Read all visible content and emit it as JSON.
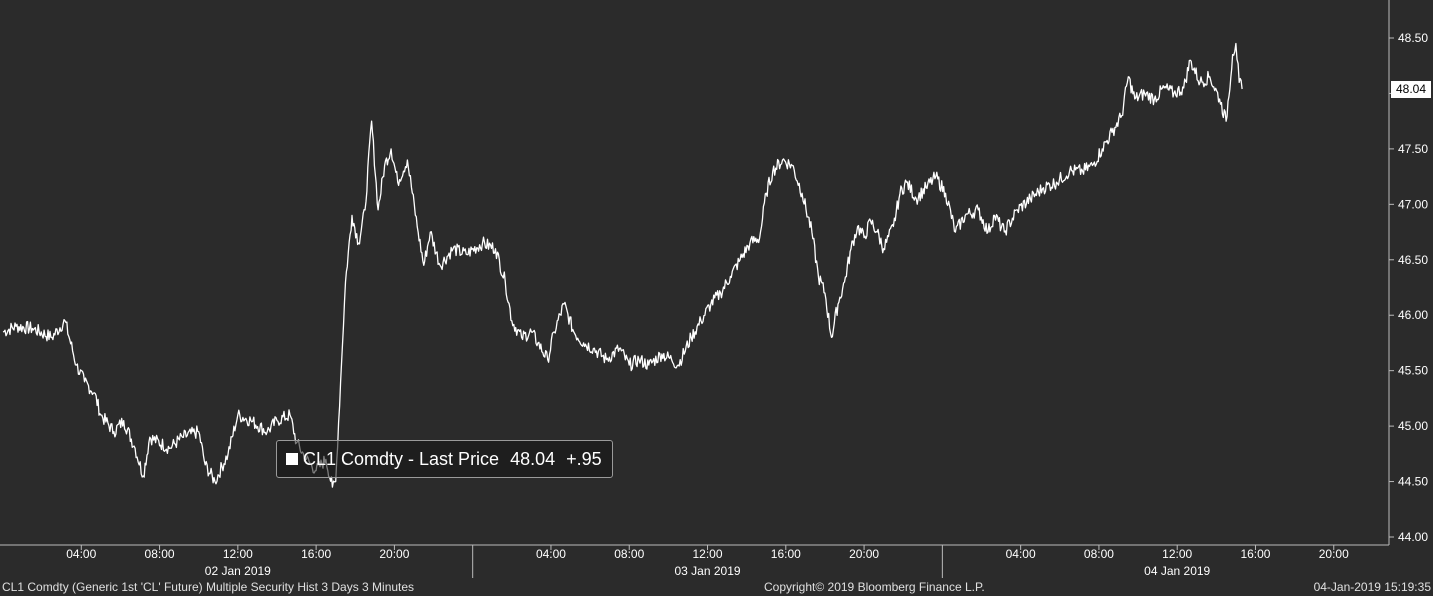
{
  "chart_data": {
    "type": "line",
    "title": "",
    "xlabel": "",
    "ylabel": "",
    "ylim": [
      44.0,
      48.75
    ],
    "y_ticks": [
      "44.00",
      "44.50",
      "45.00",
      "45.50",
      "46.00",
      "46.50",
      "47.00",
      "47.50",
      "48.00",
      "48.50"
    ],
    "x_time_ticks": [
      {
        "label": "04:00",
        "day": 0,
        "hour": 4
      },
      {
        "label": "08:00",
        "day": 0,
        "hour": 8
      },
      {
        "label": "12:00",
        "day": 0,
        "hour": 12
      },
      {
        "label": "16:00",
        "day": 0,
        "hour": 16
      },
      {
        "label": "20:00",
        "day": 0,
        "hour": 20
      },
      {
        "label": "04:00",
        "day": 1,
        "hour": 4
      },
      {
        "label": "08:00",
        "day": 1,
        "hour": 8
      },
      {
        "label": "12:00",
        "day": 1,
        "hour": 12
      },
      {
        "label": "16:00",
        "day": 1,
        "hour": 16
      },
      {
        "label": "20:00",
        "day": 1,
        "hour": 20
      },
      {
        "label": "04:00",
        "day": 2,
        "hour": 4
      },
      {
        "label": "08:00",
        "day": 2,
        "hour": 8
      },
      {
        "label": "12:00",
        "day": 2,
        "hour": 12
      },
      {
        "label": "16:00",
        "day": 2,
        "hour": 16
      },
      {
        "label": "20:00",
        "day": 2,
        "hour": 20
      }
    ],
    "x_day_labels": [
      "02 Jan 2019",
      "03 Jan 2019",
      "04 Jan 2019"
    ],
    "series": [
      {
        "name": "CL1 Comdty - Last Price",
        "color": "#ffffff",
        "points": [
          [
            "02 Jan 2019 00:00",
            45.85
          ],
          [
            "02 Jan 2019 00:40",
            45.9
          ],
          [
            "02 Jan 2019 01:30",
            45.88
          ],
          [
            "02 Jan 2019 02:30",
            45.8
          ],
          [
            "02 Jan 2019 03:10",
            45.95
          ],
          [
            "02 Jan 2019 03:45",
            45.55
          ],
          [
            "02 Jan 2019 04:10",
            45.4
          ],
          [
            "02 Jan 2019 04:40",
            45.3
          ],
          [
            "02 Jan 2019 05:00",
            45.1
          ],
          [
            "02 Jan 2019 05:40",
            44.95
          ],
          [
            "02 Jan 2019 06:10",
            45.05
          ],
          [
            "02 Jan 2019 06:45",
            44.8
          ],
          [
            "02 Jan 2019 07:10",
            44.55
          ],
          [
            "02 Jan 2019 07:30",
            44.9
          ],
          [
            "02 Jan 2019 08:30",
            44.8
          ],
          [
            "02 Jan 2019 09:10",
            44.9
          ],
          [
            "02 Jan 2019 10:00",
            44.95
          ],
          [
            "02 Jan 2019 10:20",
            44.65
          ],
          [
            "02 Jan 2019 10:50",
            44.5
          ],
          [
            "02 Jan 2019 11:30",
            44.75
          ],
          [
            "02 Jan 2019 12:00",
            45.1
          ],
          [
            "02 Jan 2019 12:40",
            45.05
          ],
          [
            "02 Jan 2019 13:30",
            44.95
          ],
          [
            "02 Jan 2019 14:00",
            45.05
          ],
          [
            "02 Jan 2019 14:40",
            45.1
          ],
          [
            "02 Jan 2019 15:00",
            44.85
          ],
          [
            "02 Jan 2019 15:30",
            44.7
          ],
          [
            "02 Jan 2019 16:00",
            44.6
          ],
          [
            "02 Jan 2019 16:30",
            44.7
          ],
          [
            "02 Jan 2019 16:50",
            44.45
          ],
          [
            "02 Jan 2019 17:00",
            44.5
          ],
          [
            "02 Jan 2019 17:15",
            45.4
          ],
          [
            "02 Jan 2019 17:30",
            46.3
          ],
          [
            "02 Jan 2019 17:50",
            46.9
          ],
          [
            "02 Jan 2019 18:10",
            46.65
          ],
          [
            "02 Jan 2019 18:30",
            46.95
          ],
          [
            "02 Jan 2019 18:50",
            47.75
          ],
          [
            "02 Jan 2019 19:10",
            46.95
          ],
          [
            "02 Jan 2019 19:30",
            47.35
          ],
          [
            "02 Jan 2019 19:50",
            47.5
          ],
          [
            "02 Jan 2019 20:10",
            47.2
          ],
          [
            "02 Jan 2019 20:40",
            47.4
          ],
          [
            "02 Jan 2019 21:10",
            46.8
          ],
          [
            "02 Jan 2019 21:30",
            46.45
          ],
          [
            "02 Jan 2019 21:50",
            46.75
          ],
          [
            "02 Jan 2019 22:20",
            46.45
          ],
          [
            "02 Jan 2019 23:00",
            46.6
          ],
          [
            "02 Jan 2019 23:40",
            46.55
          ],
          [
            "03 Jan 2019 00:30",
            46.65
          ],
          [
            "03 Jan 2019 01:10",
            46.6
          ],
          [
            "03 Jan 2019 01:40",
            46.3
          ],
          [
            "03 Jan 2019 02:00",
            45.95
          ],
          [
            "03 Jan 2019 02:30",
            45.8
          ],
          [
            "03 Jan 2019 03:00",
            45.85
          ],
          [
            "03 Jan 2019 03:20",
            45.75
          ],
          [
            "03 Jan 2019 03:50",
            45.6
          ],
          [
            "03 Jan 2019 04:10",
            45.85
          ],
          [
            "03 Jan 2019 04:40",
            46.1
          ],
          [
            "03 Jan 2019 05:10",
            45.85
          ],
          [
            "03 Jan 2019 05:40",
            45.75
          ],
          [
            "03 Jan 2019 06:10",
            45.7
          ],
          [
            "03 Jan 2019 06:50",
            45.6
          ],
          [
            "03 Jan 2019 07:30",
            45.7
          ],
          [
            "03 Jan 2019 08:00",
            45.55
          ],
          [
            "03 Jan 2019 08:30",
            45.6
          ],
          [
            "03 Jan 2019 09:00",
            45.55
          ],
          [
            "03 Jan 2019 09:40",
            45.65
          ],
          [
            "03 Jan 2019 10:10",
            45.6
          ],
          [
            "03 Jan 2019 10:30",
            45.55
          ],
          [
            "03 Jan 2019 11:10",
            45.8
          ],
          [
            "03 Jan 2019 11:40",
            45.95
          ],
          [
            "03 Jan 2019 12:10",
            46.1
          ],
          [
            "03 Jan 2019 12:40",
            46.2
          ],
          [
            "03 Jan 2019 13:10",
            46.35
          ],
          [
            "03 Jan 2019 13:40",
            46.5
          ],
          [
            "03 Jan 2019 14:10",
            46.65
          ],
          [
            "03 Jan 2019 14:40",
            46.7
          ],
          [
            "03 Jan 2019 15:00",
            47.1
          ],
          [
            "03 Jan 2019 15:20",
            47.3
          ],
          [
            "03 Jan 2019 15:50",
            47.4
          ],
          [
            "03 Jan 2019 16:20",
            47.35
          ],
          [
            "03 Jan 2019 16:50",
            47.1
          ],
          [
            "03 Jan 2019 17:20",
            46.75
          ],
          [
            "03 Jan 2019 17:40",
            46.35
          ],
          [
            "03 Jan 2019 18:00",
            46.2
          ],
          [
            "03 Jan 2019 18:20",
            45.8
          ],
          [
            "03 Jan 2019 18:40",
            46.1
          ],
          [
            "03 Jan 2019 19:00",
            46.3
          ],
          [
            "03 Jan 2019 19:20",
            46.6
          ],
          [
            "03 Jan 2019 19:40",
            46.8
          ],
          [
            "03 Jan 2019 20:00",
            46.7
          ],
          [
            "03 Jan 2019 20:20",
            46.85
          ],
          [
            "03 Jan 2019 20:40",
            46.75
          ],
          [
            "03 Jan 2019 21:00",
            46.6
          ],
          [
            "03 Jan 2019 21:30",
            46.8
          ],
          [
            "03 Jan 2019 21:50",
            47.1
          ],
          [
            "03 Jan 2019 22:10",
            47.2
          ],
          [
            "03 Jan 2019 22:40",
            47.05
          ],
          [
            "03 Jan 2019 23:10",
            47.15
          ],
          [
            "03 Jan 2019 23:40",
            47.25
          ],
          [
            "04 Jan 2019 00:10",
            47.1
          ],
          [
            "04 Jan 2019 00:40",
            46.75
          ],
          [
            "04 Jan 2019 01:10",
            46.9
          ],
          [
            "04 Jan 2019 01:50",
            46.95
          ],
          [
            "04 Jan 2019 02:20",
            46.75
          ],
          [
            "04 Jan 2019 02:40",
            46.9
          ],
          [
            "04 Jan 2019 03:10",
            46.75
          ],
          [
            "04 Jan 2019 03:50",
            46.95
          ],
          [
            "04 Jan 2019 04:30",
            47.05
          ],
          [
            "04 Jan 2019 05:10",
            47.15
          ],
          [
            "04 Jan 2019 05:50",
            47.2
          ],
          [
            "04 Jan 2019 06:30",
            47.3
          ],
          [
            "04 Jan 2019 07:10",
            47.3
          ],
          [
            "04 Jan 2019 07:40",
            47.35
          ],
          [
            "04 Jan 2019 08:10",
            47.5
          ],
          [
            "04 Jan 2019 08:40",
            47.65
          ],
          [
            "04 Jan 2019 09:10",
            47.8
          ],
          [
            "04 Jan 2019 09:30",
            48.15
          ],
          [
            "04 Jan 2019 09:50",
            47.95
          ],
          [
            "04 Jan 2019 10:20",
            48.0
          ],
          [
            "04 Jan 2019 10:50",
            47.95
          ],
          [
            "04 Jan 2019 11:20",
            48.05
          ],
          [
            "04 Jan 2019 11:50",
            48.0
          ],
          [
            "04 Jan 2019 12:20",
            48.05
          ],
          [
            "04 Jan 2019 12:40",
            48.3
          ],
          [
            "04 Jan 2019 13:10",
            48.1
          ],
          [
            "04 Jan 2019 13:40",
            48.15
          ],
          [
            "04 Jan 2019 14:10",
            47.95
          ],
          [
            "04 Jan 2019 14:30",
            47.75
          ],
          [
            "04 Jan 2019 14:50",
            48.35
          ],
          [
            "04 Jan 2019 15:00",
            48.45
          ],
          [
            "04 Jan 2019 15:10",
            48.1
          ],
          [
            "04 Jan 2019 15:19",
            48.04
          ]
        ]
      }
    ],
    "last_price_label": "48.04",
    "legend": {
      "label": "CL1 Comdty - Last Price",
      "value": "48.04",
      "change": "+.95"
    }
  },
  "footer": {
    "security": "CL1 Comdty (Generic 1st 'CL' Future) Multiple Security Hist   3 Days 3 Minutes",
    "copyright": "Copyright© 2019 Bloomberg Finance L.P.",
    "timestamp": "04-Jan-2019 15:19:35"
  },
  "colors": {
    "background": "#2b2b2b",
    "line": "#ffffff",
    "axis": "#bbbbbb",
    "text": "#ffffff"
  }
}
